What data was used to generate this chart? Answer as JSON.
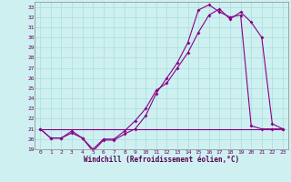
{
  "xlabel": "Windchill (Refroidissement éolien,°C)",
  "xlim": [
    -0.5,
    23.5
  ],
  "ylim": [
    19,
    33.5
  ],
  "xticks": [
    0,
    1,
    2,
    3,
    4,
    5,
    6,
    7,
    8,
    9,
    10,
    11,
    12,
    13,
    14,
    15,
    16,
    17,
    18,
    19,
    20,
    21,
    22,
    23
  ],
  "yticks": [
    19,
    20,
    21,
    22,
    23,
    24,
    25,
    26,
    27,
    28,
    29,
    30,
    31,
    32,
    33
  ],
  "bg_color": "#cef0f0",
  "grid_color": "#aadddd",
  "line_color": "#880088",
  "line1_x": [
    0,
    1,
    2,
    3,
    4,
    5,
    6,
    7,
    8,
    9,
    10,
    11,
    12,
    13,
    14,
    15,
    16,
    17,
    18,
    19,
    20,
    21,
    22,
    23
  ],
  "line1_y": [
    21.0,
    20.1,
    20.1,
    20.6,
    20.1,
    18.8,
    19.9,
    19.9,
    20.5,
    21.0,
    22.3,
    24.5,
    26.0,
    27.5,
    29.5,
    32.7,
    33.2,
    32.5,
    32.0,
    32.2,
    21.3,
    21.0,
    21.0,
    21.0
  ],
  "line2_x": [
    0,
    1,
    2,
    3,
    4,
    5,
    6,
    7,
    8,
    9,
    10,
    11,
    12,
    13,
    14,
    15,
    16,
    17,
    18,
    19,
    20,
    21,
    22,
    23
  ],
  "line2_y": [
    21.0,
    20.1,
    20.1,
    20.8,
    20.1,
    19.0,
    20.0,
    20.0,
    20.8,
    21.8,
    23.0,
    24.8,
    25.5,
    27.0,
    28.5,
    30.5,
    32.2,
    32.8,
    31.8,
    32.5,
    31.5,
    30.0,
    21.5,
    21.0
  ],
  "line3_x": [
    0,
    23
  ],
  "line3_y": [
    21.0,
    21.0
  ]
}
